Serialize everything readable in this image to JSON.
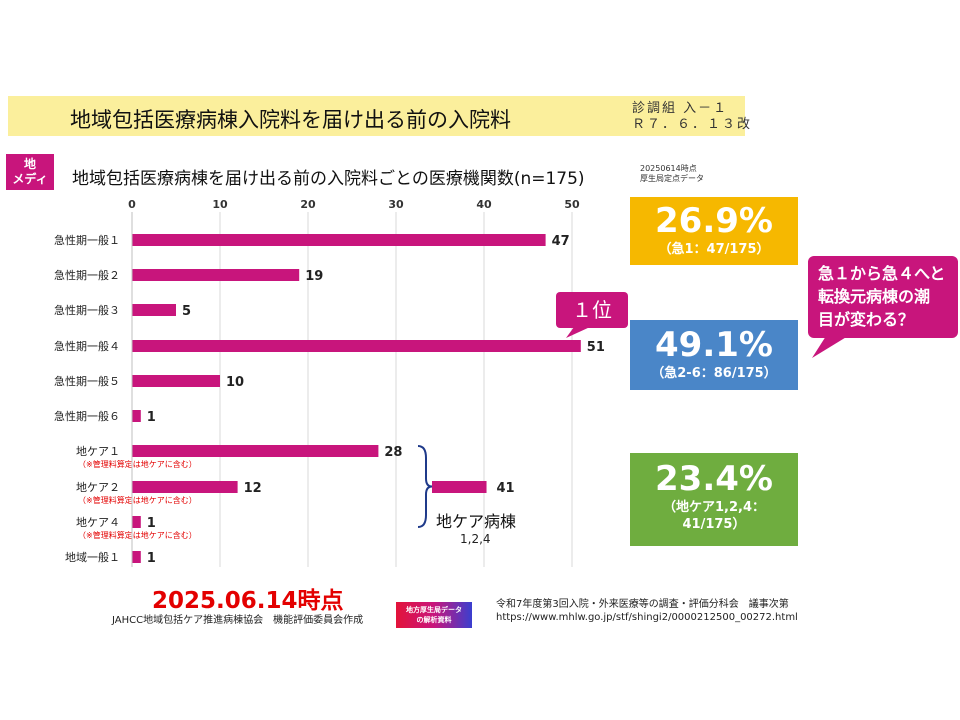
{
  "header": {
    "title": "地域包括医療病棟入院料を届け出る前の入院料",
    "revision_line1": "診調組 入－１",
    "revision_line2": "Ｒ７．６．１３改"
  },
  "badge": {
    "line1": "地",
    "line2": "メディ"
  },
  "date_note": {
    "line1": "20250614時点",
    "line2": "厚生局定点データ"
  },
  "chart_data": {
    "type": "bar",
    "orientation": "horizontal",
    "title": "地域包括医療病棟を届け出る前の入院料ごとの医療機関数(n=175)",
    "xlim": [
      0,
      50
    ],
    "xticks": [
      0,
      10,
      20,
      30,
      40,
      50
    ],
    "categories": [
      "急性期一般１",
      "急性期一般２",
      "急性期一般３",
      "急性期一般４",
      "急性期一般５",
      "急性期一般６",
      "地ケア１",
      "地ケア２",
      "地ケア４",
      "地域一般１"
    ],
    "values": [
      47,
      19,
      5,
      51,
      10,
      1,
      28,
      12,
      1,
      1
    ],
    "notes": [
      "",
      "",
      "",
      "",
      "",
      "",
      "（※管理料算定は地ケアに含む）",
      "（※管理料算定は地ケアに含む）",
      "（※管理料算定は地ケアに含む）",
      ""
    ],
    "summary_bar": {
      "value": 41,
      "label": "地ケア病棟",
      "sublabel": "1,2,4"
    },
    "color": "#c8157c"
  },
  "stats": {
    "acute1": {
      "percent": "26.9%",
      "detail": "（急1：47/175）",
      "color": "#f6b800"
    },
    "acute26": {
      "percent": "49.1%",
      "detail": "（急2-6：86/175）",
      "color": "#4a86c8"
    },
    "chiken": {
      "percent": "23.4%",
      "detail1": "（地ケア1,2,4：",
      "detail2": "41/175）",
      "color": "#6fad3f"
    }
  },
  "rank_label": "１位",
  "speech": {
    "line1": "急１から急４へと",
    "line2": "転換元病棟の潮",
    "line3": "目が変わる？"
  },
  "footer": {
    "big_date": "2025.06.14時点",
    "org": "JAHCC地域包括ケア推進病棟協会　機能評価委員会作成",
    "logo_line1": "地方厚生局データ",
    "logo_line2": "の解析資料",
    "source_line1": "令和7年度第3回入院・外来医療等の調査・評価分科会　議事次第",
    "source_line2": "https://www.mhlw.go.jp/stf/shingi2/0000212500_00272.html"
  }
}
